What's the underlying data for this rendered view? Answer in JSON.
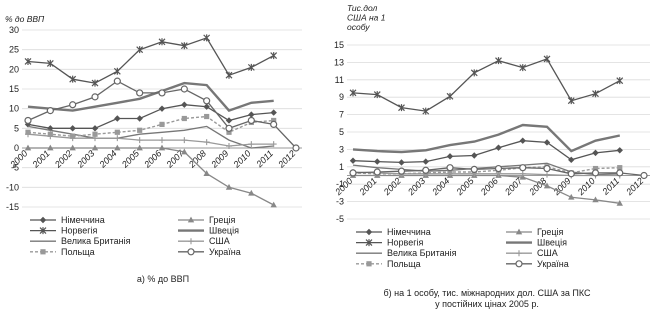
{
  "captions": {
    "a": "а) % до ВВП",
    "b_line1": "б) на 1 особу, тис. міжнародних дол. США за ПКС",
    "b_line2": "у постійних цінах 2005 р."
  },
  "chart_data": [
    {
      "id": "a",
      "type": "line",
      "ylabel": "% до ВВП",
      "ylim": [
        -15,
        30
      ],
      "yticks": [
        -15,
        -10,
        -5,
        0,
        5,
        10,
        15,
        20,
        25,
        30
      ],
      "x": [
        "2000",
        "2001",
        "2002",
        "2003",
        "2004",
        "2005",
        "2006",
        "2007",
        "2008",
        "2009",
        "2010",
        "2011",
        "2012"
      ],
      "grid": true,
      "legend": "bottom",
      "series": [
        {
          "name": "Німеччина",
          "color": "#555555",
          "marker": "diamond",
          "dash": "",
          "width": 1.3,
          "values": [
            6,
            5,
            5,
            5,
            7.5,
            7.5,
            10,
            11,
            10.5,
            7,
            8.5,
            9,
            null
          ]
        },
        {
          "name": "Греція",
          "color": "#888888",
          "marker": "triangle",
          "dash": "",
          "width": 1.3,
          "values": [
            0,
            0,
            0,
            0,
            0,
            0,
            0,
            -1,
            -6.5,
            -10,
            -11.5,
            -14.5,
            null
          ]
        },
        {
          "name": "Норвегія",
          "color": "#555555",
          "marker": "x",
          "dash": "",
          "width": 1.3,
          "values": [
            22,
            21.5,
            17.5,
            16.5,
            19.5,
            25,
            27,
            26,
            28,
            18.5,
            20.5,
            23.5,
            null
          ]
        },
        {
          "name": "Швеція",
          "color": "#777777",
          "marker": "none",
          "dash": "",
          "width": 2.4,
          "values": [
            10.5,
            10,
            9.5,
            10.5,
            11.5,
            12.5,
            14.5,
            16.5,
            16,
            9.5,
            11.5,
            12,
            null
          ]
        },
        {
          "name": "Велика Британія",
          "color": "#777777",
          "marker": "none",
          "dash": "",
          "width": 1.3,
          "values": [
            5.5,
            4.5,
            3.5,
            2.5,
            2.5,
            3.5,
            4,
            4.5,
            5.5,
            2,
            0,
            0.5,
            null
          ]
        },
        {
          "name": "США",
          "color": "#999999",
          "marker": "plus",
          "dash": "",
          "width": 1.3,
          "values": [
            3.5,
            3,
            2.5,
            2.5,
            2.5,
            2,
            2,
            2,
            1.5,
            0.5,
            1,
            1,
            null
          ]
        },
        {
          "name": "Польща",
          "color": "#999999",
          "marker": "square",
          "dash": "3,2",
          "width": 1.4,
          "values": [
            4,
            3.5,
            3,
            3.5,
            4,
            4.5,
            6,
            7.5,
            8,
            4,
            6.5,
            7,
            null
          ]
        },
        {
          "name": "Україна",
          "color": "#666666",
          "marker": "circle",
          "dash": "",
          "width": 1.3,
          "values": [
            7,
            9.5,
            11,
            13,
            17,
            14,
            14,
            15,
            12,
            5,
            7,
            6,
            0
          ]
        }
      ]
    },
    {
      "id": "b",
      "type": "line",
      "ylabel": "Тис.дол США на 1 особу",
      "ylabel_lines": [
        "Тис.дол",
        "США на 1",
        "особу"
      ],
      "ylim": [
        -5,
        15
      ],
      "yticks": [
        -5,
        -3,
        -1,
        1,
        3,
        5,
        7,
        9,
        11,
        13,
        15
      ],
      "x": [
        "2000",
        "2001",
        "2002",
        "2003",
        "2004",
        "2005",
        "2006",
        "2007",
        "2008",
        "2009",
        "2010",
        "2011",
        "2012"
      ],
      "grid": true,
      "legend": "bottom",
      "series": [
        {
          "name": "Німеччина",
          "color": "#555555",
          "marker": "diamond",
          "dash": "",
          "width": 1.3,
          "values": [
            1.7,
            1.6,
            1.5,
            1.6,
            2.2,
            2.3,
            3.2,
            4.0,
            3.8,
            1.8,
            2.6,
            2.9,
            null
          ]
        },
        {
          "name": "Греція",
          "color": "#888888",
          "marker": "triangle",
          "dash": "",
          "width": 1.3,
          "values": [
            0,
            0,
            0,
            0,
            0,
            0,
            0,
            -0.2,
            -1.2,
            -2.5,
            -2.8,
            -3.2,
            null
          ]
        },
        {
          "name": "Норвегія",
          "color": "#555555",
          "marker": "x",
          "dash": "",
          "width": 1.3,
          "values": [
            9.5,
            9.3,
            7.8,
            7.4,
            9.1,
            11.8,
            13.2,
            12.4,
            13.4,
            8.6,
            9.4,
            10.9,
            null
          ]
        },
        {
          "name": "Швеція",
          "color": "#777777",
          "marker": "none",
          "dash": "",
          "width": 2.4,
          "values": [
            3.0,
            2.8,
            2.7,
            2.9,
            3.5,
            3.9,
            4.7,
            5.8,
            5.6,
            2.8,
            4.0,
            4.6,
            null
          ]
        },
        {
          "name": "Велика Британія",
          "color": "#777777",
          "marker": "none",
          "dash": "",
          "width": 1.3,
          "values": [
            1.2,
            0.9,
            0.7,
            0.5,
            0.6,
            0.8,
            1.0,
            1.2,
            1.4,
            0.4,
            0.1,
            0.2,
            null
          ]
        },
        {
          "name": "США",
          "color": "#999999",
          "marker": "plus",
          "dash": "",
          "width": 1.3,
          "values": [
            0.4,
            0.3,
            0.2,
            0.2,
            0.2,
            0.2,
            0.2,
            0.2,
            0.1,
            0,
            0,
            0,
            null
          ]
        },
        {
          "name": "Польща",
          "color": "#999999",
          "marker": "square",
          "dash": "3,2",
          "width": 1.4,
          "values": [
            0.3,
            0.2,
            0.2,
            0.3,
            0.4,
            0.4,
            0.6,
            0.9,
            1.0,
            0.3,
            0.8,
            0.9,
            null
          ]
        },
        {
          "name": "Україна",
          "color": "#666666",
          "marker": "circle",
          "dash": "",
          "width": 1.3,
          "values": [
            0.3,
            0.4,
            0.5,
            0.6,
            0.9,
            0.7,
            0.8,
            0.9,
            0.8,
            0.2,
            0.3,
            0.3,
            0
          ]
        }
      ]
    }
  ]
}
